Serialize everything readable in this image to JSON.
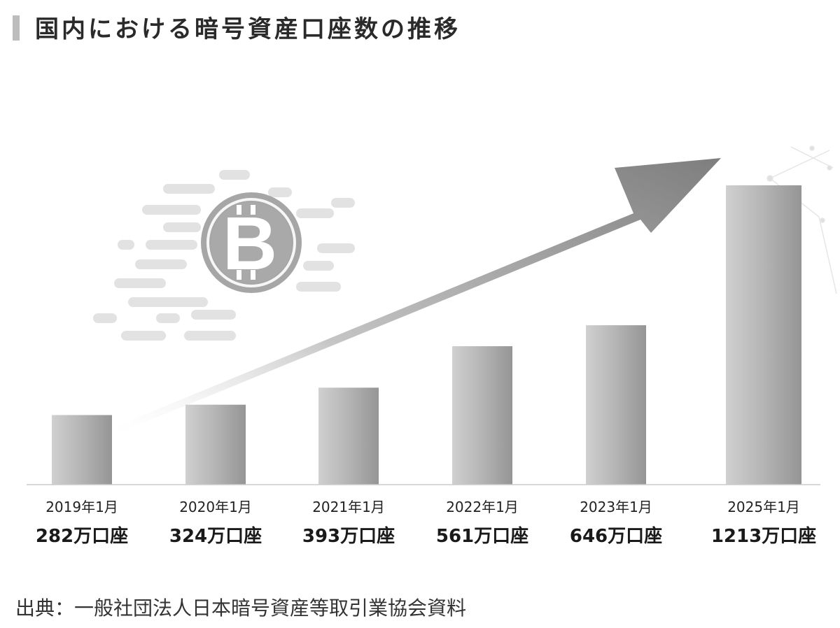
{
  "title": "国内における暗号資産口座数の推移",
  "source": "出典：一般社団法人日本暗号資産等取引業協会資料",
  "chart_data": {
    "type": "bar",
    "title": "国内における暗号資産口座数の推移",
    "xlabel": "",
    "ylabel": "",
    "categories": [
      "2019年1月",
      "2020年1月",
      "2021年1月",
      "2022年1月",
      "2023年1月",
      "2025年1月"
    ],
    "values": [
      282,
      324,
      393,
      561,
      646,
      1213
    ],
    "value_labels": [
      "282万口座",
      "324万口座",
      "393万口座",
      "561万口座",
      "646万口座",
      "1213万口座"
    ],
    "ylim": [
      0,
      1213
    ],
    "grid": false,
    "legend": "none",
    "colors": {
      "bar_light": "#c8c8c8",
      "bar_dark": "#9a9a9a",
      "arrow": "#8c8c8c",
      "coin": "#a9a9a9",
      "axis": "#cccccc"
    },
    "decorations": [
      "bitcoin-coin-icon",
      "upward-trend-arrow"
    ]
  }
}
